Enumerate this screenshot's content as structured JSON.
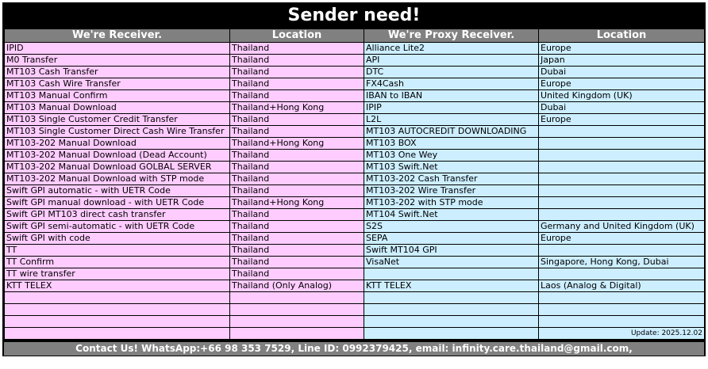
{
  "title": "Sender need!",
  "headers": [
    "We're Receiver.",
    "Location",
    "We're Proxy Receiver.",
    "Location"
  ],
  "receiver_rows": [
    [
      "IPID",
      "Thailand"
    ],
    [
      "M0 Transfer",
      "Thailand"
    ],
    [
      "MT103 Cash Transfer",
      "Thailand"
    ],
    [
      "MT103 Cash Wire Transfer",
      "Thailand"
    ],
    [
      "MT103 Manual Confirm",
      "Thailand"
    ],
    [
      "MT103 Manual Download",
      "Thailand+Hong Kong"
    ],
    [
      "MT103 Single Customer Credit Transfer",
      "Thailand"
    ],
    [
      "MT103 Single Customer Direct Cash Wire Transfer",
      "Thailand"
    ],
    [
      "MT103-202 Manual Download",
      "Thailand+Hong Kong"
    ],
    [
      "MT103-202 Manual Download (Dead Account)",
      "Thailand"
    ],
    [
      "MT103-202 Manual Download GOLBAL SERVER",
      "Thailand"
    ],
    [
      "MT103-202 Manual Download with STP mode",
      "Thailand"
    ],
    [
      "Swift GPI automatic - with UETR Code",
      "Thailand"
    ],
    [
      "Swift GPI manual download - with UETR Code",
      "Thailand+Hong Kong"
    ],
    [
      "Swift GPI MT103 direct cash transfer",
      "Thailand"
    ],
    [
      "Swift GPI semi-automatic - with UETR Code",
      "Thailand"
    ],
    [
      "Swift GPI with code",
      "Thailand"
    ],
    [
      "TT",
      "Thailand"
    ],
    [
      "TT Confirm",
      "Thailand"
    ],
    [
      "TT wire transfer",
      "Thailand"
    ],
    [
      "KTT TELEX",
      "Thailand (Only Analog)"
    ],
    [
      "",
      ""
    ],
    [
      "",
      ""
    ],
    [
      "",
      ""
    ],
    [
      "",
      ""
    ]
  ],
  "proxy_rows": [
    [
      "Alliance Lite2",
      "Europe"
    ],
    [
      "API",
      "Japan"
    ],
    [
      "DTC",
      "Dubai"
    ],
    [
      "FX4Cash",
      "Europe"
    ],
    [
      "IBAN to IBAN",
      "United Kingdom (UK)"
    ],
    [
      "IPIP",
      "Dubai"
    ],
    [
      "L2L",
      "Europe"
    ],
    [
      "MT103 AUTOCREDIT DOWNLOADING",
      ""
    ],
    [
      "MT103 BOX",
      ""
    ],
    [
      "MT103 One Wey",
      ""
    ],
    [
      "MT103 Swift.Net",
      ""
    ],
    [
      "MT103-202 Cash Transfer",
      ""
    ],
    [
      "MT103-202 Wire Transfer",
      ""
    ],
    [
      "MT103-202 with STP mode",
      ""
    ],
    [
      "MT104 Swift.Net",
      ""
    ],
    [
      "S2S",
      "Germany and United Kingdom (UK)"
    ],
    [
      "SEPA",
      "Europe"
    ],
    [
      "Swift MT104 GPI",
      ""
    ],
    [
      "VisaNet",
      "Singapore, Hong Kong, Dubai"
    ],
    [
      "",
      ""
    ],
    [
      "KTT TELEX",
      "Laos (Analog & Digital)"
    ],
    [
      "",
      ""
    ],
    [
      "",
      ""
    ],
    [
      "",
      ""
    ],
    [
      "",
      "Update: 2025.12.02"
    ]
  ],
  "footer": "Contact Us! WhatsApp:+66 98 353 7529, Line ID: 0992379425, email: infinity.care.thailand@gmail.com,  https://www.thailifeplc.com",
  "colors": {
    "receiver_bg": "#ffccff",
    "proxy_bg": "#cceeff",
    "header_bg": "#808080",
    "title_bg": "#000000"
  }
}
